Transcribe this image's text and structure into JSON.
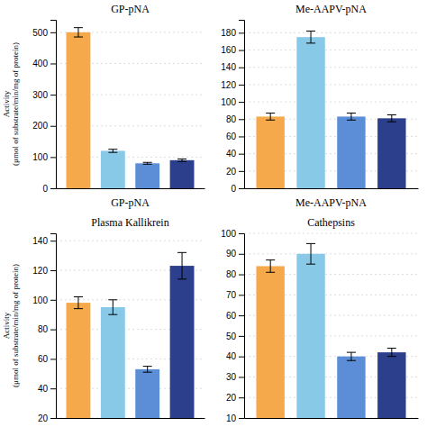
{
  "chart_data": [
    {
      "type": "bar",
      "title": "GP-pNA",
      "xlabel": "GP-pNA",
      "ylabel": "Activity\n(μmol of substrate/min/mg of protein)",
      "categories": [
        null,
        null,
        null,
        null
      ],
      "values": [
        500,
        120,
        80,
        90
      ],
      "errors": [
        15,
        5,
        3,
        4
      ],
      "colors": [
        "#F5A94A",
        "#89C9E8",
        "#5B8ED6",
        "#2B3F8C"
      ],
      "ylim": [
        0,
        540
      ],
      "yticks": [
        0,
        100,
        200,
        300,
        400,
        500
      ],
      "grid": true,
      "tick_labels": "y"
    },
    {
      "type": "bar",
      "title": "Me-AAPV-pNA",
      "xlabel": "Me-AAPV-pNA",
      "categories": [
        null,
        null,
        null,
        null
      ],
      "values": [
        83,
        175,
        83,
        81
      ],
      "errors": [
        4,
        7,
        4,
        4
      ],
      "colors": [
        "#F5A94A",
        "#89C9E8",
        "#5B8ED6",
        "#2B3F8C"
      ],
      "ylim": [
        0,
        195
      ],
      "yticks": [
        0,
        20,
        40,
        60,
        80,
        100,
        120,
        140,
        160,
        180
      ],
      "grid": true,
      "tick_labels": "y"
    },
    {
      "type": "bar",
      "title": "Plasma Kallikrein",
      "ylabel": "Activity\n(μmol of substrate/min/mg of protein)",
      "categories": [
        null,
        null,
        null,
        null
      ],
      "values": [
        98,
        95,
        53,
        123
      ],
      "errors": [
        4,
        5,
        2,
        9
      ],
      "colors": [
        "#F5A94A",
        "#89C9E8",
        "#5B8ED6",
        "#2B3F8C"
      ],
      "ylim": [
        20,
        145
      ],
      "yticks": [
        20,
        40,
        60,
        80,
        100,
        120,
        140
      ],
      "grid": true,
      "tick_labels": "y"
    },
    {
      "type": "bar",
      "title": "Cathepsins",
      "categories": [
        null,
        null,
        null,
        null
      ],
      "values": [
        84,
        90,
        40,
        42
      ],
      "errors": [
        3,
        5,
        2,
        2
      ],
      "colors": [
        "#F5A94A",
        "#89C9E8",
        "#5B8ED6",
        "#2B3F8C"
      ],
      "ylim": [
        10,
        100
      ],
      "yticks": [
        10,
        20,
        30,
        40,
        50,
        60,
        70,
        80,
        90,
        100
      ],
      "grid": true,
      "tick_labels": "y"
    }
  ]
}
